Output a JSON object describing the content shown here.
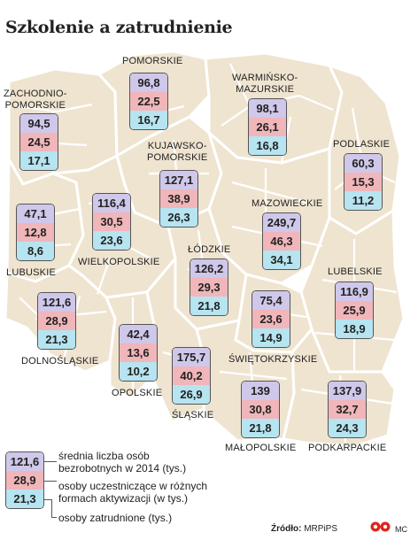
{
  "title": "Szkolenie a zatrudnienie",
  "colors": {
    "unemployed": "#cfc8ea",
    "activation": "#f0b6ba",
    "employed": "#b6e4f0",
    "map_fill": "#efe4d0",
    "map_border": "#ffffff"
  },
  "regions": [
    {
      "name": "POMORSKIE",
      "unemployed": "96,8",
      "activation": "22,5",
      "employed": "16,7"
    },
    {
      "name": "WARMIŃSKO-\nMAZURSKIE",
      "unemployed": "98,1",
      "activation": "26,1",
      "employed": "16,8"
    },
    {
      "name": "ZACHODNIO-\nPOMORSKIE",
      "unemployed": "94,5",
      "activation": "24,5",
      "employed": "17,1"
    },
    {
      "name": "KUJAWSKO-\nPOMORSKIE",
      "unemployed": "127,1",
      "activation": "38,9",
      "employed": "26,3"
    },
    {
      "name": "PODLASKIE",
      "unemployed": "60,3",
      "activation": "15,3",
      "employed": "11,2"
    },
    {
      "name": "LUBUSKIE",
      "unemployed": "47,1",
      "activation": "12,8",
      "employed": "8,6"
    },
    {
      "name": "WIELKOPOLSKIE",
      "unemployed": "116,4",
      "activation": "30,5",
      "employed": "23,6"
    },
    {
      "name": "MAZOWIECKIE",
      "unemployed": "249,7",
      "activation": "46,3",
      "employed": "34,1"
    },
    {
      "name": "ŁÓDZKIE",
      "unemployed": "126,2",
      "activation": "29,3",
      "employed": "21,8"
    },
    {
      "name": "LUBELSKIE",
      "unemployed": "116,9",
      "activation": "25,9",
      "employed": "18,9"
    },
    {
      "name": "DOLNOŚLĄSKIE",
      "unemployed": "121,6",
      "activation": "28,9",
      "employed": "21,3"
    },
    {
      "name": "ŚWIĘTOKRZYSKIE",
      "unemployed": "75,4",
      "activation": "23,6",
      "employed": "14,9"
    },
    {
      "name": "OPOLSKIE",
      "unemployed": "42,4",
      "activation": "13,6",
      "employed": "10,2"
    },
    {
      "name": "ŚLĄSKIE",
      "unemployed": "175,7",
      "activation": "40,2",
      "employed": "26,9"
    },
    {
      "name": "MAŁOPOLSKIE",
      "unemployed": "139",
      "activation": "30,8",
      "employed": "21,8"
    },
    {
      "name": "PODKARPACKIE",
      "unemployed": "137,9",
      "activation": "32,7",
      "employed": "24,3"
    }
  ],
  "legend": {
    "sample": {
      "unemployed": "121,6",
      "activation": "28,9",
      "employed": "21,3"
    },
    "unemployed_label": "średnia liczba osób\nbezrobotnych w 2014 (tys.)",
    "activation_label": "osoby uczestniczące w różnych\nformach aktywizacji (w tys.)",
    "employed_label": "osoby zatrudnione (tys.)"
  },
  "source_label": "Źródło:",
  "source_value": "MRPiPS",
  "author": "MC"
}
